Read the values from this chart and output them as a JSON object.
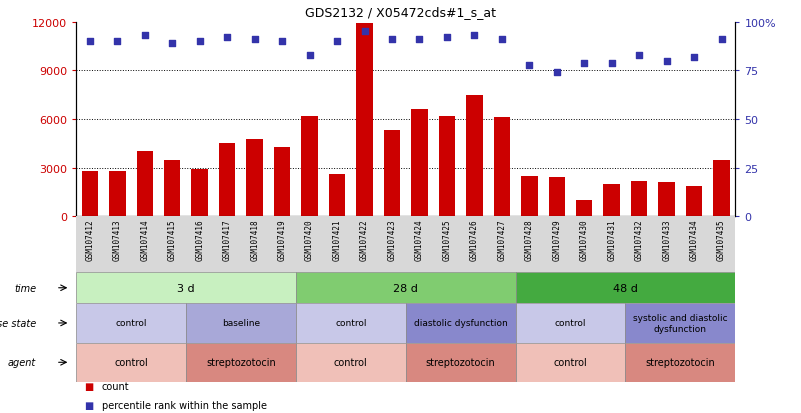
{
  "title": "GDS2132 / X05472cds#1_s_at",
  "samples": [
    "GSM107412",
    "GSM107413",
    "GSM107414",
    "GSM107415",
    "GSM107416",
    "GSM107417",
    "GSM107418",
    "GSM107419",
    "GSM107420",
    "GSM107421",
    "GSM107422",
    "GSM107423",
    "GSM107424",
    "GSM107425",
    "GSM107426",
    "GSM107427",
    "GSM107428",
    "GSM107429",
    "GSM107430",
    "GSM107431",
    "GSM107432",
    "GSM107433",
    "GSM107434",
    "GSM107435"
  ],
  "counts": [
    2800,
    2800,
    4000,
    3500,
    2900,
    4500,
    4800,
    4300,
    6200,
    2600,
    11900,
    5300,
    6600,
    6200,
    7500,
    6100,
    2500,
    2400,
    1000,
    2000,
    2200,
    2100,
    1900,
    3500
  ],
  "percentile": [
    90,
    90,
    93,
    89,
    90,
    92,
    91,
    90,
    83,
    90,
    95,
    91,
    91,
    92,
    93,
    91,
    78,
    74,
    79,
    79,
    83,
    80,
    82,
    91
  ],
  "ylim_left": [
    0,
    12000
  ],
  "ylim_right": [
    0,
    100
  ],
  "yticks_left": [
    0,
    3000,
    6000,
    9000,
    12000
  ],
  "yticks_right": [
    0,
    25,
    50,
    75,
    100
  ],
  "bar_color": "#cc0000",
  "dot_color": "#3333aa",
  "time_rows": [
    {
      "label": "3 d",
      "start": 0,
      "end": 8,
      "color": "#c8f0c0"
    },
    {
      "label": "28 d",
      "start": 8,
      "end": 16,
      "color": "#80cc70"
    },
    {
      "label": "48 d",
      "start": 16,
      "end": 24,
      "color": "#44aa40"
    }
  ],
  "disease_rows": [
    {
      "label": "control",
      "start": 0,
      "end": 4,
      "color": "#c8c8e8"
    },
    {
      "label": "baseline",
      "start": 4,
      "end": 8,
      "color": "#a8a8d8"
    },
    {
      "label": "control",
      "start": 8,
      "end": 12,
      "color": "#c8c8e8"
    },
    {
      "label": "diastolic dysfunction",
      "start": 12,
      "end": 16,
      "color": "#8888cc"
    },
    {
      "label": "control",
      "start": 16,
      "end": 20,
      "color": "#c8c8e8"
    },
    {
      "label": "systolic and diastolic\ndysfunction",
      "start": 20,
      "end": 24,
      "color": "#8888cc"
    }
  ],
  "agent_rows": [
    {
      "label": "control",
      "start": 0,
      "end": 4,
      "color": "#f0c0b8"
    },
    {
      "label": "streptozotocin",
      "start": 4,
      "end": 8,
      "color": "#d88880"
    },
    {
      "label": "control",
      "start": 8,
      "end": 12,
      "color": "#f0c0b8"
    },
    {
      "label": "streptozotocin",
      "start": 12,
      "end": 16,
      "color": "#d88880"
    },
    {
      "label": "control",
      "start": 16,
      "end": 20,
      "color": "#f0c0b8"
    },
    {
      "label": "streptozotocin",
      "start": 20,
      "end": 24,
      "color": "#d88880"
    }
  ],
  "row_labels": [
    "time",
    "disease state",
    "agent"
  ],
  "legend_items": [
    {
      "label": "count",
      "color": "#cc0000"
    },
    {
      "label": "percentile rank within the sample",
      "color": "#3333aa"
    }
  ],
  "xticklabel_bg": "#d8d8d8"
}
